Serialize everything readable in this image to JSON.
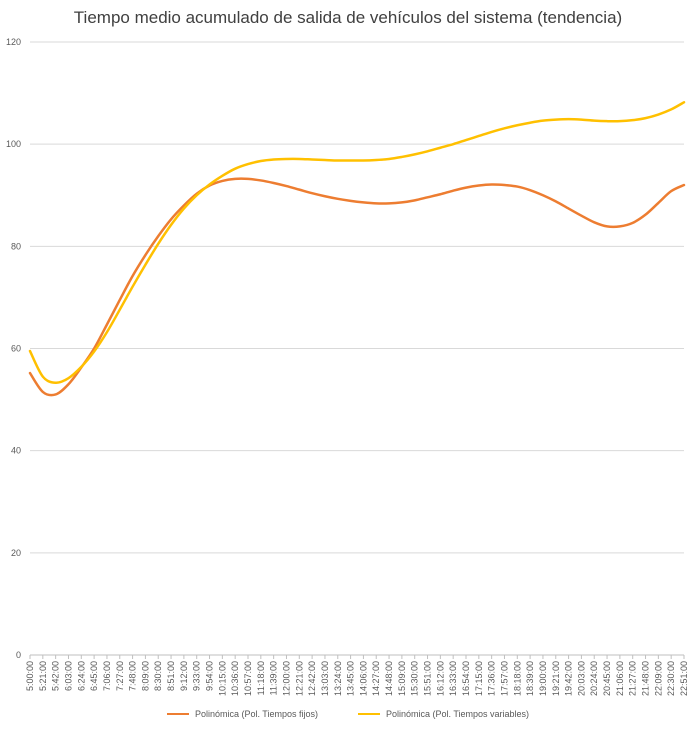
{
  "chart_data": {
    "type": "line",
    "title": "Tiempo medio acumulado de salida de vehículos del sistema (tendencia)",
    "xlabel": "",
    "ylabel": "",
    "ylim": [
      0,
      120
    ],
    "y_ticks": [
      0,
      20,
      40,
      60,
      80,
      100,
      120
    ],
    "grid": true,
    "legend_position": "bottom",
    "categories": [
      "5:00:00",
      "5:21:00",
      "5:42:00",
      "6:03:00",
      "6:24:00",
      "6:45:00",
      "7:06:00",
      "7:27:00",
      "7:48:00",
      "8:09:00",
      "8:30:00",
      "8:51:00",
      "9:12:00",
      "9:33:00",
      "9:54:00",
      "10:15:00",
      "10:36:00",
      "10:57:00",
      "11:18:00",
      "11:39:00",
      "12:00:00",
      "12:21:00",
      "12:42:00",
      "13:03:00",
      "13:24:00",
      "13:45:00",
      "14:06:00",
      "14:27:00",
      "14:48:00",
      "15:09:00",
      "15:30:00",
      "15:51:00",
      "16:12:00",
      "16:33:00",
      "16:54:00",
      "17:15:00",
      "17:36:00",
      "17:57:00",
      "18:18:00",
      "18:39:00",
      "19:00:00",
      "19:21:00",
      "19:42:00",
      "20:03:00",
      "20:24:00",
      "20:45:00",
      "21:06:00",
      "21:27:00",
      "21:48:00",
      "22:09:00",
      "22:30:00",
      "22:51:00"
    ],
    "series": [
      {
        "name": "Polinómica (Pol. Tiempos fijos)",
        "color": "#ED7D31",
        "values": [
          55.2,
          51.5,
          51.0,
          53.0,
          56.3,
          60.0,
          64.7,
          69.5,
          74.2,
          78.3,
          82.0,
          85.3,
          88.0,
          90.3,
          91.9,
          92.8,
          93.2,
          93.2,
          92.9,
          92.4,
          91.8,
          91.1,
          90.4,
          89.8,
          89.3,
          88.9,
          88.6,
          88.4,
          88.4,
          88.6,
          89.0,
          89.6,
          90.2,
          90.9,
          91.5,
          91.9,
          92.1,
          92.0,
          91.7,
          91.0,
          90.0,
          88.8,
          87.4,
          86.0,
          84.7,
          83.9,
          83.9,
          84.6,
          86.2,
          88.5,
          90.8,
          92.0
        ]
      },
      {
        "name": "Polinómica (Pol. Tiempos variables)",
        "color": "#FFC000",
        "values": [
          59.5,
          54.5,
          53.3,
          54.2,
          56.4,
          59.4,
          63.2,
          67.6,
          72.1,
          76.4,
          80.5,
          84.2,
          87.4,
          90.0,
          92.1,
          93.8,
          95.2,
          96.1,
          96.7,
          97.0,
          97.1,
          97.1,
          97.0,
          96.9,
          96.8,
          96.8,
          96.8,
          96.9,
          97.1,
          97.5,
          98.0,
          98.6,
          99.3,
          100.0,
          100.8,
          101.6,
          102.4,
          103.1,
          103.7,
          104.2,
          104.6,
          104.8,
          104.9,
          104.8,
          104.6,
          104.5,
          104.5,
          104.7,
          105.1,
          105.8,
          106.8,
          108.2
        ]
      }
    ]
  }
}
